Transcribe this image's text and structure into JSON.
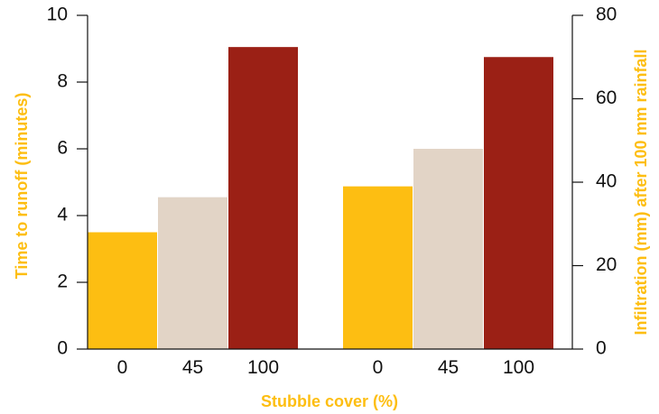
{
  "chart_data": {
    "type": "bar",
    "xlabel": "Stubble cover (%)",
    "ylabel_left": "Time to runoff (minutes)",
    "ylabel_right": "Infiltration (mm) after 100 mm rainfall",
    "left_axis": {
      "ylim": [
        0,
        10
      ],
      "ticks": [
        "0",
        "2",
        "4",
        "6",
        "8",
        "10"
      ]
    },
    "right_axis": {
      "ylim": [
        0,
        80
      ],
      "ticks": [
        "0",
        "20",
        "40",
        "60",
        "80"
      ]
    },
    "groups": [
      {
        "axis": "left",
        "bars": [
          {
            "category": "0",
            "value": 3.5,
            "color": "#FDBE12"
          },
          {
            "category": "45",
            "value": 4.55,
            "color": "#E2D4C6"
          },
          {
            "category": "100",
            "value": 9.05,
            "color": "#9B2015"
          }
        ]
      },
      {
        "axis": "right",
        "bars": [
          {
            "category": "0",
            "value": 39,
            "color": "#FDBE12"
          },
          {
            "category": "45",
            "value": 48,
            "color": "#E2D4C6"
          },
          {
            "category": "100",
            "value": 70,
            "color": "#9B2015"
          }
        ]
      }
    ],
    "grid": false,
    "title_color": "#FDBE12"
  }
}
